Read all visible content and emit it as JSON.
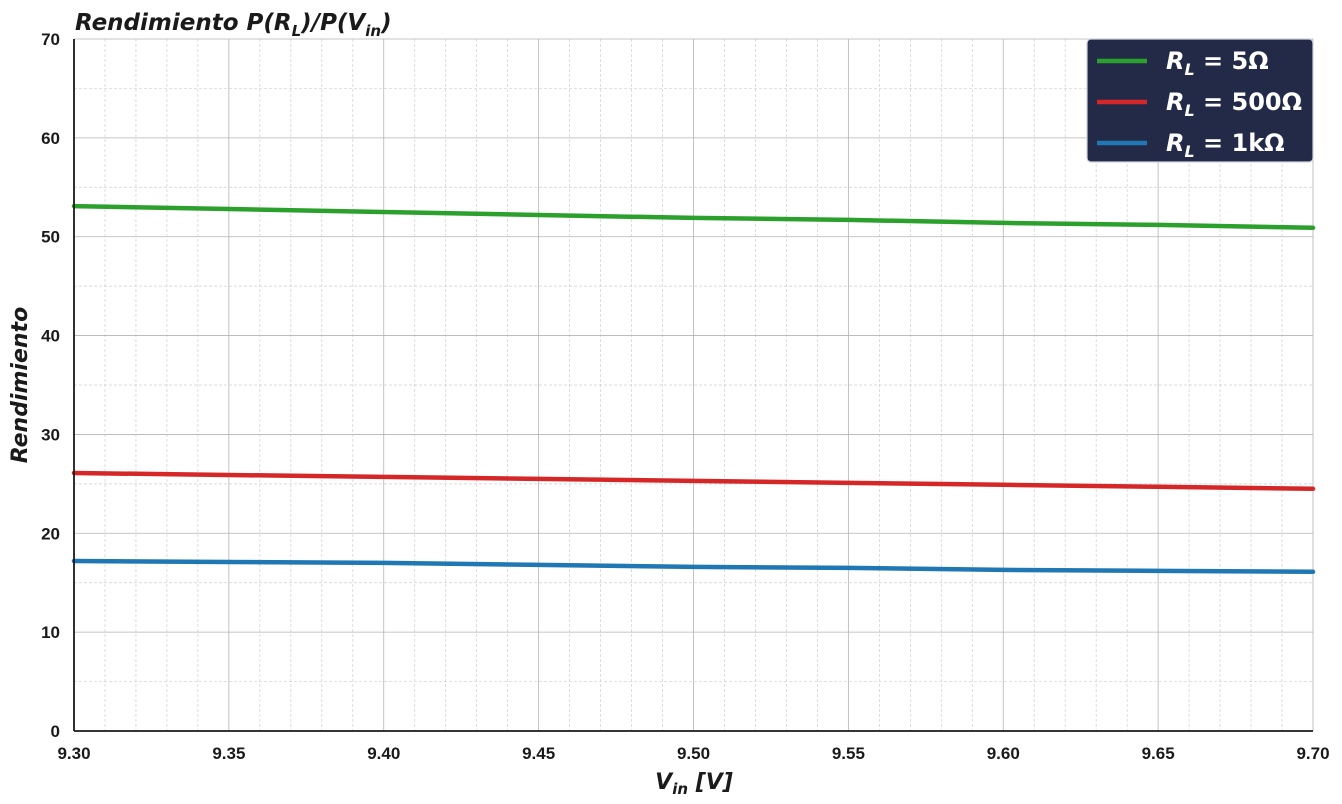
{
  "chart_data": {
    "type": "line",
    "title": "Rendimiento P(R_L)/P(V_in)",
    "title_parts": [
      "Rendimiento P(R",
      "L",
      ")/P(V",
      "in",
      ")"
    ],
    "xlabel_parts": [
      "V",
      "in",
      " [V]"
    ],
    "ylabel": "Rendimiento",
    "xlim": [
      9.3,
      9.7
    ],
    "ylim": [
      0,
      70
    ],
    "x_ticks": [
      "9.30",
      "9.35",
      "9.40",
      "9.45",
      "9.50",
      "9.55",
      "9.60",
      "9.65",
      "9.70"
    ],
    "y_ticks": [
      "0",
      "10",
      "20",
      "30",
      "40",
      "50",
      "60",
      "70"
    ],
    "grid": true,
    "legend_position": "top-right",
    "legend_background": "#222a47",
    "series": [
      {
        "name": "R_L = 5Ω",
        "label_parts": [
          "R",
          "L",
          " = 5Ω"
        ],
        "color": "#2ca02c",
        "x": [
          9.3,
          9.35,
          9.4,
          9.45,
          9.5,
          9.55,
          9.6,
          9.65,
          9.7
        ],
        "y": [
          53.1,
          52.8,
          52.5,
          52.2,
          51.9,
          51.7,
          51.4,
          51.2,
          50.9
        ]
      },
      {
        "name": "R_L = 500Ω",
        "label_parts": [
          "R",
          "L",
          " = 500Ω"
        ],
        "color": "#d62728",
        "x": [
          9.3,
          9.35,
          9.4,
          9.45,
          9.5,
          9.55,
          9.6,
          9.65,
          9.7
        ],
        "y": [
          26.1,
          25.9,
          25.7,
          25.5,
          25.3,
          25.1,
          24.9,
          24.7,
          24.5
        ]
      },
      {
        "name": "R_L = 1kΩ",
        "label_parts": [
          "R",
          "L",
          " = 1kΩ"
        ],
        "color": "#1f77b4",
        "x": [
          9.3,
          9.35,
          9.4,
          9.45,
          9.5,
          9.55,
          9.6,
          9.65,
          9.7
        ],
        "y": [
          17.2,
          17.1,
          17.0,
          16.8,
          16.6,
          16.5,
          16.3,
          16.2,
          16.1
        ]
      }
    ]
  }
}
